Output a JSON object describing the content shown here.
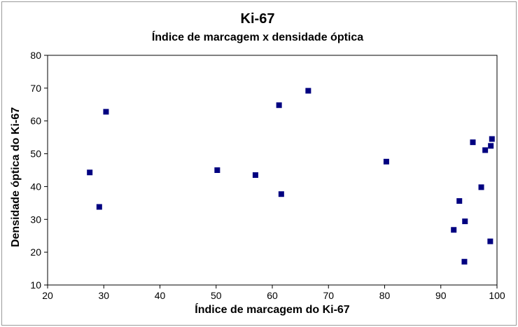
{
  "chart_data": {
    "type": "scatter",
    "title": "Ki-67",
    "subtitle": "Índice de marcagem  x  densidade óptica",
    "xlabel": "Índice de marcagem do Ki-67",
    "ylabel": "Densidade óptica do Ki-67",
    "xlim": [
      20,
      100
    ],
    "ylim": [
      10,
      80
    ],
    "xticks": [
      20,
      30,
      40,
      50,
      60,
      70,
      80,
      90,
      100
    ],
    "yticks": [
      10,
      20,
      30,
      40,
      50,
      60,
      70,
      80
    ],
    "grid": false,
    "marker": "square",
    "color": "#000080",
    "points": [
      {
        "x": 27.5,
        "y": 44.3
      },
      {
        "x": 29.2,
        "y": 33.8
      },
      {
        "x": 30.4,
        "y": 62.8
      },
      {
        "x": 50.2,
        "y": 45.0
      },
      {
        "x": 57.0,
        "y": 43.5
      },
      {
        "x": 61.2,
        "y": 64.8
      },
      {
        "x": 61.6,
        "y": 37.7
      },
      {
        "x": 66.4,
        "y": 69.2
      },
      {
        "x": 80.3,
        "y": 47.6
      },
      {
        "x": 92.3,
        "y": 26.8
      },
      {
        "x": 93.3,
        "y": 35.6
      },
      {
        "x": 94.2,
        "y": 17.1
      },
      {
        "x": 94.3,
        "y": 29.4
      },
      {
        "x": 95.7,
        "y": 53.5
      },
      {
        "x": 97.2,
        "y": 39.8
      },
      {
        "x": 97.9,
        "y": 51.1
      },
      {
        "x": 98.8,
        "y": 23.3
      },
      {
        "x": 98.9,
        "y": 52.4
      },
      {
        "x": 99.1,
        "y": 54.5
      }
    ]
  }
}
